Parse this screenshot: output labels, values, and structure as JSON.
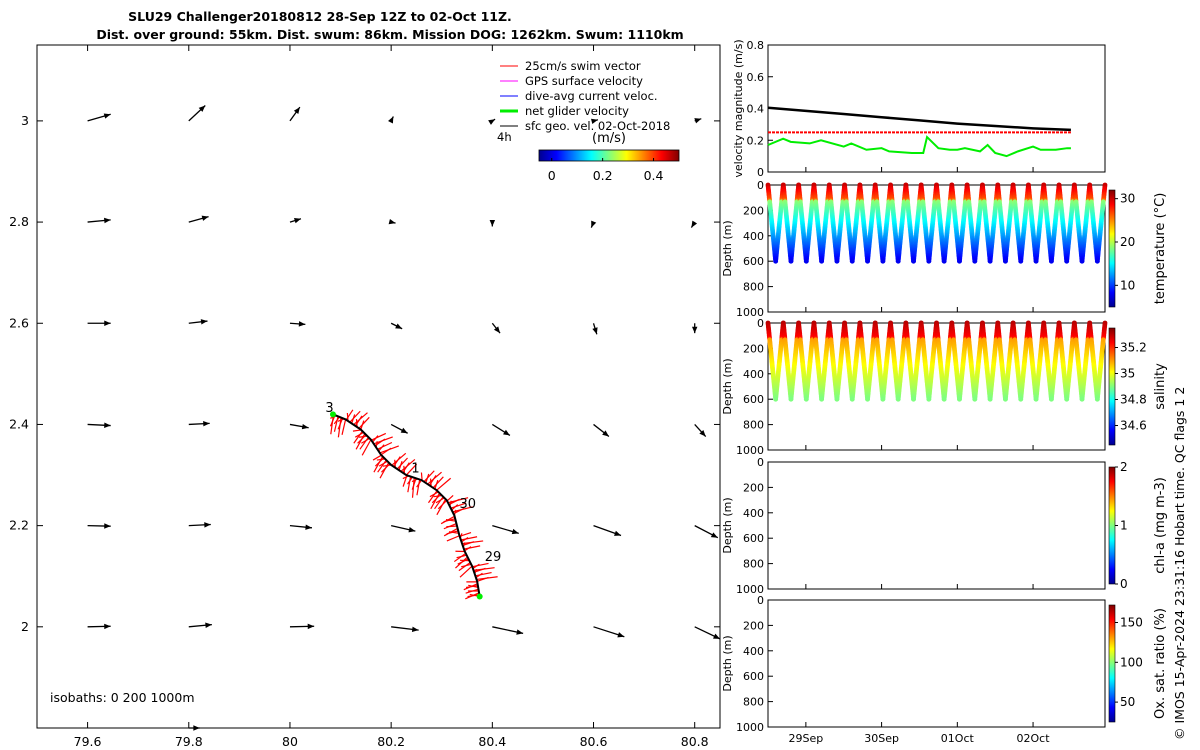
{
  "title_line1": "SLU29 Challenger20180812 28-Sep 12Z to 02-Oct 11Z.",
  "title_line2": "Dist. over ground: 55km. Dist. swum: 86km. Mission DOG: 1262km. Swum: 1110km",
  "copyright": "© IMOS 15-Apr-2024 23:31:16 Hobart time. QC flags 1  2",
  "colors": {
    "swim_vector": "#ff0000",
    "gps_velocity": "#ff00ff",
    "dive_avg_current": "#0000ff",
    "net_glider": "#00ee00",
    "sfc_geo": "#000000",
    "mean_speed_line": "#000000"
  },
  "chart_data": [
    {
      "type": "scatter",
      "name": "track-map",
      "xlim": [
        79.5,
        80.85
      ],
      "ylim": [
        1.8,
        3.15
      ],
      "xticks": [
        "79.6",
        "79.8",
        "80",
        "80.2",
        "80.4",
        "80.6",
        "80.8"
      ],
      "xtick_values": [
        79.6,
        79.8,
        80.0,
        80.2,
        80.4,
        80.6,
        80.8
      ],
      "yticks": [
        "2",
        "2.2",
        "2.4",
        "2.6",
        "2.8",
        "3"
      ],
      "ytick_values": [
        2.0,
        2.2,
        2.4,
        2.6,
        2.8,
        3.0
      ],
      "legend": {
        "placement": "top-right",
        "entries": [
          "25cm/s swim vector",
          "GPS surface velocity",
          "dive-avg current veloc.",
          "net glider velocity",
          "sfc geo. vel. 02-Oct-2018"
        ],
        "scale_label": "4h"
      },
      "colorbar": {
        "label": "(m/s)",
        "ticks": [
          "0",
          "0.2",
          "0.4"
        ],
        "tick_values": [
          0,
          0.2,
          0.4
        ],
        "range": [
          -0.05,
          0.5
        ]
      },
      "isobaths_label": "isobaths: 0   200  1000m",
      "geo_vectors": [
        {
          "lon": 79.6,
          "lat": 3.0,
          "u": 0.42,
          "v": 0.12
        },
        {
          "lon": 79.8,
          "lat": 3.0,
          "u": 0.3,
          "v": 0.28
        },
        {
          "lon": 80.0,
          "lat": 3.0,
          "u": 0.18,
          "v": 0.25
        },
        {
          "lon": 80.2,
          "lat": 3.0,
          "u": 0.04,
          "v": 0.08
        },
        {
          "lon": 80.4,
          "lat": 3.0,
          "u": 0.05,
          "v": 0.03
        },
        {
          "lon": 80.6,
          "lat": 3.0,
          "u": 0.08,
          "v": 0.02
        },
        {
          "lon": 80.8,
          "lat": 3.0,
          "u": 0.12,
          "v": 0.04
        },
        {
          "lon": 79.6,
          "lat": 2.8,
          "u": 0.42,
          "v": 0.04
        },
        {
          "lon": 79.8,
          "lat": 2.8,
          "u": 0.36,
          "v": 0.1
        },
        {
          "lon": 80.0,
          "lat": 2.8,
          "u": 0.2,
          "v": 0.06
        },
        {
          "lon": 80.2,
          "lat": 2.8,
          "u": 0.08,
          "v": -0.02
        },
        {
          "lon": 80.4,
          "lat": 2.8,
          "u": 0.0,
          "v": -0.08
        },
        {
          "lon": 80.6,
          "lat": 2.8,
          "u": -0.04,
          "v": -0.1
        },
        {
          "lon": 80.8,
          "lat": 2.8,
          "u": -0.06,
          "v": -0.1
        },
        {
          "lon": 79.6,
          "lat": 2.6,
          "u": 0.42,
          "v": 0.0
        },
        {
          "lon": 79.8,
          "lat": 2.6,
          "u": 0.34,
          "v": 0.04
        },
        {
          "lon": 80.0,
          "lat": 2.6,
          "u": 0.28,
          "v": -0.02
        },
        {
          "lon": 80.2,
          "lat": 2.6,
          "u": 0.2,
          "v": -0.1
        },
        {
          "lon": 80.4,
          "lat": 2.6,
          "u": 0.14,
          "v": -0.18
        },
        {
          "lon": 80.6,
          "lat": 2.6,
          "u": 0.06,
          "v": -0.2
        },
        {
          "lon": 80.8,
          "lat": 2.6,
          "u": 0.0,
          "v": -0.18
        },
        {
          "lon": 79.6,
          "lat": 2.4,
          "u": 0.42,
          "v": -0.02
        },
        {
          "lon": 79.8,
          "lat": 2.4,
          "u": 0.38,
          "v": 0.02
        },
        {
          "lon": 80.0,
          "lat": 2.4,
          "u": 0.34,
          "v": -0.06
        },
        {
          "lon": 80.2,
          "lat": 2.4,
          "u": 0.3,
          "v": -0.16
        },
        {
          "lon": 80.4,
          "lat": 2.4,
          "u": 0.32,
          "v": -0.2
        },
        {
          "lon": 80.6,
          "lat": 2.4,
          "u": 0.28,
          "v": -0.22
        },
        {
          "lon": 80.8,
          "lat": 2.4,
          "u": 0.2,
          "v": -0.22
        },
        {
          "lon": 79.6,
          "lat": 2.2,
          "u": 0.42,
          "v": -0.01
        },
        {
          "lon": 79.8,
          "lat": 2.2,
          "u": 0.4,
          "v": 0.02
        },
        {
          "lon": 80.0,
          "lat": 2.2,
          "u": 0.4,
          "v": -0.04
        },
        {
          "lon": 80.2,
          "lat": 2.2,
          "u": 0.44,
          "v": -0.1
        },
        {
          "lon": 80.4,
          "lat": 2.2,
          "u": 0.48,
          "v": -0.14
        },
        {
          "lon": 80.6,
          "lat": 2.2,
          "u": 0.5,
          "v": -0.18
        },
        {
          "lon": 80.8,
          "lat": 2.2,
          "u": 0.42,
          "v": -0.22
        },
        {
          "lon": 79.6,
          "lat": 2.0,
          "u": 0.42,
          "v": 0.01
        },
        {
          "lon": 79.8,
          "lat": 2.0,
          "u": 0.42,
          "v": 0.04
        },
        {
          "lon": 80.0,
          "lat": 2.0,
          "u": 0.44,
          "v": 0.01
        },
        {
          "lon": 80.2,
          "lat": 2.0,
          "u": 0.5,
          "v": -0.06
        },
        {
          "lon": 80.4,
          "lat": 2.0,
          "u": 0.56,
          "v": -0.12
        },
        {
          "lon": 80.6,
          "lat": 2.0,
          "u": 0.56,
          "v": -0.18
        },
        {
          "lon": 80.8,
          "lat": 2.0,
          "u": 0.46,
          "v": -0.22
        },
        {
          "lon": 79.8,
          "lat": 1.8,
          "u": 0.2,
          "v": 0.0
        }
      ],
      "track": [
        [
          80.375,
          2.06
        ],
        [
          80.37,
          2.09
        ],
        [
          80.36,
          2.12
        ],
        [
          80.345,
          2.15
        ],
        [
          80.335,
          2.18
        ],
        [
          80.325,
          2.22
        ],
        [
          80.31,
          2.25
        ],
        [
          80.29,
          2.27
        ],
        [
          80.26,
          2.29
        ],
        [
          80.23,
          2.3
        ],
        [
          80.2,
          2.32
        ],
        [
          80.18,
          2.34
        ],
        [
          80.16,
          2.37
        ],
        [
          80.14,
          2.39
        ],
        [
          80.11,
          2.41
        ],
        [
          80.085,
          2.42
        ]
      ],
      "day_labels": [
        {
          "label": "29",
          "lon": 80.385,
          "lat": 2.13
        },
        {
          "label": "30",
          "lon": 80.335,
          "lat": 2.235
        },
        {
          "label": "1",
          "lon": 80.24,
          "lat": 2.305
        },
        {
          "label": "3",
          "lon": 80.07,
          "lat": 2.425
        }
      ]
    },
    {
      "type": "line",
      "name": "velocity",
      "ylabel": "velocity magnitude (m/s)",
      "ylim": [
        0,
        0.8
      ],
      "yticks": [
        "0",
        "0.2",
        "0.4",
        "0.6",
        "0.8"
      ],
      "tick_values": [
        0,
        0.2,
        0.4,
        0.6,
        0.8
      ],
      "series": [
        {
          "color": "#ff0000",
          "dashed": true,
          "x": [
            0,
            4
          ],
          "y": [
            0.25,
            0.25
          ]
        },
        {
          "color": "#000000",
          "x": [
            0,
            0.5,
            1,
            1.5,
            2,
            2.5,
            3,
            3.5,
            4
          ],
          "y": [
            0.405,
            0.385,
            0.365,
            0.345,
            0.325,
            0.305,
            0.29,
            0.275,
            0.265
          ]
        },
        {
          "color": "#00ee00",
          "x": [
            0,
            0.2,
            0.3,
            0.55,
            0.7,
            1.0,
            1.1,
            1.3,
            1.5,
            1.6,
            1.9,
            2.05,
            2.1,
            2.25,
            2.4,
            2.5,
            2.6,
            2.8,
            2.9,
            3.0,
            3.15,
            3.3,
            3.5,
            3.6,
            3.8,
            3.95,
            4.0
          ],
          "y": [
            0.17,
            0.21,
            0.19,
            0.18,
            0.2,
            0.16,
            0.18,
            0.14,
            0.15,
            0.13,
            0.12,
            0.12,
            0.22,
            0.15,
            0.14,
            0.14,
            0.15,
            0.13,
            0.17,
            0.12,
            0.1,
            0.13,
            0.16,
            0.14,
            0.14,
            0.15,
            0.15
          ]
        }
      ]
    },
    {
      "type": "heatmap",
      "name": "temperature",
      "ylabel": "Depth (m)",
      "yticks": [
        "0",
        "200",
        "400",
        "600",
        "800",
        "1000"
      ],
      "tick_values": [
        0,
        200,
        400,
        600,
        800,
        1000
      ],
      "clabel": "temperature (°C)",
      "cticks": [
        "10",
        "20",
        "30"
      ],
      "ctick_values": [
        10,
        20,
        30
      ],
      "crange": [
        5,
        32
      ],
      "cmin_depth": 600,
      "surface": 30,
      "deep": 8,
      "thermocline_depth": 130
    },
    {
      "type": "heatmap",
      "name": "salinity",
      "ylabel": "Depth (m)",
      "yticks": [
        "0",
        "200",
        "400",
        "600",
        "800",
        "1000"
      ],
      "tick_values": [
        0,
        200,
        400,
        600,
        800,
        1000
      ],
      "clabel": "salinity",
      "cticks": [
        "34.6",
        "34.8",
        "35",
        "35.2"
      ],
      "ctick_values": [
        34.6,
        34.8,
        35,
        35.2
      ],
      "crange": [
        34.45,
        35.35
      ],
      "cmin_depth": 600,
      "surface": 35.3,
      "deep": 34.9,
      "thermocline_depth": 130
    },
    {
      "type": "heatmap",
      "name": "chl-a",
      "ylabel": "Depth (m)",
      "yticks": [
        "0",
        "200",
        "400",
        "600",
        "800",
        "1000"
      ],
      "tick_values": [
        0,
        200,
        400,
        600,
        800,
        1000
      ],
      "clabel": "chl-a (mg m-3)",
      "cticks": [
        "0",
        "1",
        "2"
      ],
      "ctick_values": [
        0,
        1,
        2
      ],
      "crange": [
        0,
        2
      ],
      "empty": true
    },
    {
      "type": "heatmap",
      "name": "oxygen",
      "ylabel": "Depth (m)",
      "yticks": [
        "0",
        "200",
        "400",
        "600",
        "800",
        "1000"
      ],
      "tick_values": [
        0,
        200,
        400,
        600,
        800,
        1000
      ],
      "clabel": "Ox. sat. ratio (%)",
      "cticks": [
        "50",
        "100",
        "150"
      ],
      "ctick_values": [
        50,
        100,
        150
      ],
      "crange": [
        25,
        172
      ],
      "empty": true
    }
  ],
  "time_axis": {
    "ticks": [
      "29Sep",
      "30Sep",
      "01Oct",
      "02Oct"
    ],
    "tick_values": [
      0.5,
      1.5,
      2.5,
      3.5
    ],
    "range": [
      0,
      4.45
    ]
  }
}
